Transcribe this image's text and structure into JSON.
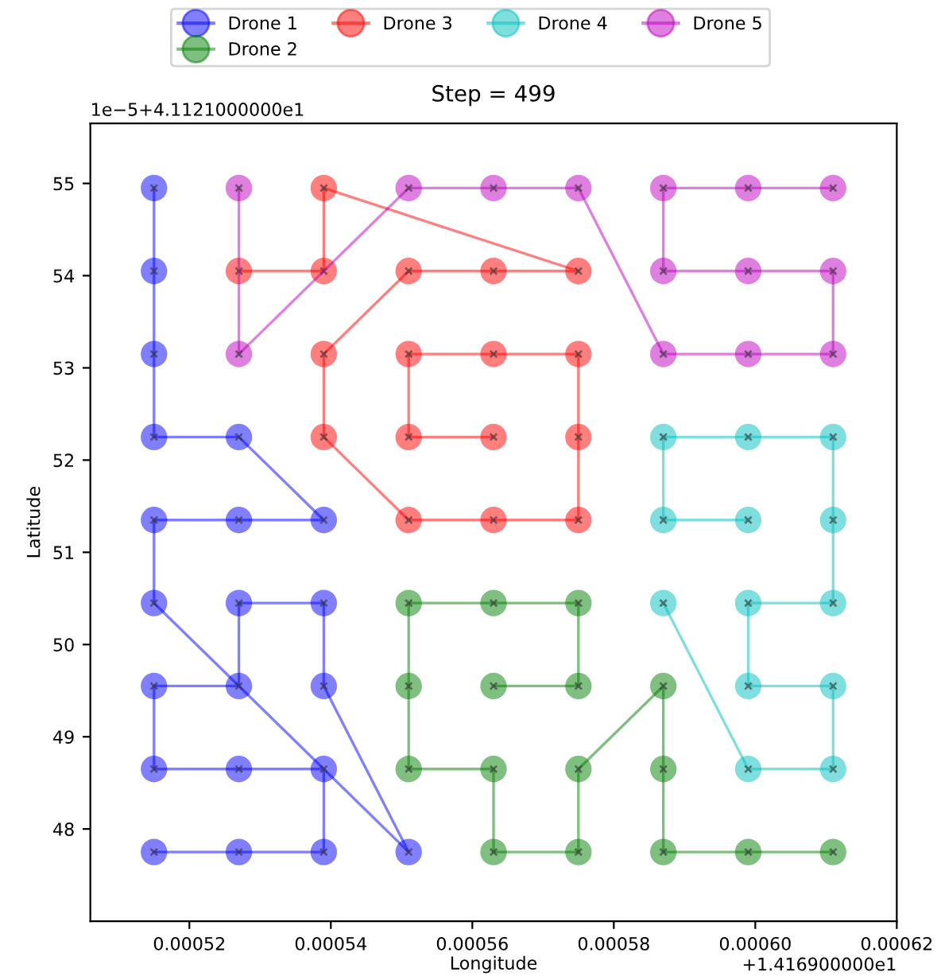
{
  "chart_data": {
    "type": "line",
    "title": "Step = 499",
    "xlabel": "Longitude",
    "ylabel": "Latitude",
    "annotations": [
      "+1.416900000e1",
      "1e−5+4.1121000000e1"
    ],
    "xlim": [
      0.000506,
      0.00062
    ],
    "xticks": [
      0.00052,
      0.00054,
      0.00056,
      0.00058,
      {
        "value": 0.0006,
        "label": "0.00060"
      },
      0.00062
    ],
    "ylim": [
      47.0,
      55.65
    ],
    "yticks": [
      48,
      49,
      50,
      51,
      52,
      53,
      54,
      55
    ],
    "grid": false,
    "legend": "top",
    "marker": "circle",
    "line_style": "solid",
    "series": [
      {
        "name": "Drone 1",
        "color": "#0000ff",
        "x": [
          0.000515,
          0.000515,
          0.000515,
          0.000515,
          0.000527,
          0.000539,
          0.000527,
          0.000515,
          0.000515,
          0.000551,
          0.000539,
          0.000539,
          0.000527,
          0.000527,
          0.000515,
          0.000515,
          0.000527,
          0.000539,
          0.000539,
          0.000527,
          0.000515
        ],
        "values": [
          54.95,
          54.05,
          53.15,
          52.25,
          52.25,
          51.35,
          51.35,
          51.35,
          50.45,
          47.75,
          49.55,
          50.45,
          50.45,
          49.55,
          49.55,
          48.65,
          48.65,
          48.65,
          47.75,
          47.75,
          47.75
        ]
      },
      {
        "name": "Drone 2",
        "color": "#008000",
        "x": [
          0.000563,
          0.000575,
          0.000575,
          0.000563,
          0.000551,
          0.000551,
          0.000551,
          0.000563,
          0.000563,
          0.000575,
          0.000575,
          0.000587,
          0.000587,
          0.000587,
          0.000599,
          0.000611
        ],
        "values": [
          49.55,
          49.55,
          50.45,
          50.45,
          50.45,
          49.55,
          48.65,
          48.65,
          47.75,
          47.75,
          48.65,
          49.55,
          48.65,
          47.75,
          47.75,
          47.75
        ]
      },
      {
        "name": "Drone 3",
        "color": "#ff0000",
        "x": [
          0.000527,
          0.000539,
          0.000539,
          0.000575,
          0.000563,
          0.000551,
          0.000539,
          0.000539,
          0.000551,
          0.000563,
          0.000575,
          0.000575,
          0.000575,
          0.000563,
          0.000551,
          0.000551,
          0.000563
        ],
        "values": [
          54.05,
          54.05,
          54.95,
          54.05,
          54.05,
          54.05,
          53.15,
          52.25,
          51.35,
          51.35,
          51.35,
          52.25,
          53.15,
          53.15,
          53.15,
          52.25,
          52.25
        ]
      },
      {
        "name": "Drone 4",
        "color": "#00bfbf",
        "x": [
          0.000587,
          0.000599,
          0.000611,
          0.000611,
          0.000599,
          0.000599,
          0.000611,
          0.000611,
          0.000611,
          0.000599,
          0.000587,
          0.000587,
          0.000599
        ],
        "values": [
          50.45,
          48.65,
          48.65,
          49.55,
          49.55,
          50.45,
          50.45,
          51.35,
          52.25,
          52.25,
          52.25,
          51.35,
          51.35
        ]
      },
      {
        "name": "Drone 5",
        "color": "#bf00bf",
        "x": [
          0.000527,
          0.000527,
          0.000551,
          0.000563,
          0.000575,
          0.000587,
          0.000599,
          0.000611,
          0.000611,
          0.000599,
          0.000587,
          0.000587,
          0.000599,
          0.000611
        ],
        "values": [
          54.95,
          53.15,
          54.95,
          54.95,
          54.95,
          53.15,
          53.15,
          53.15,
          54.05,
          54.05,
          54.05,
          54.95,
          54.95,
          54.95
        ]
      }
    ]
  }
}
